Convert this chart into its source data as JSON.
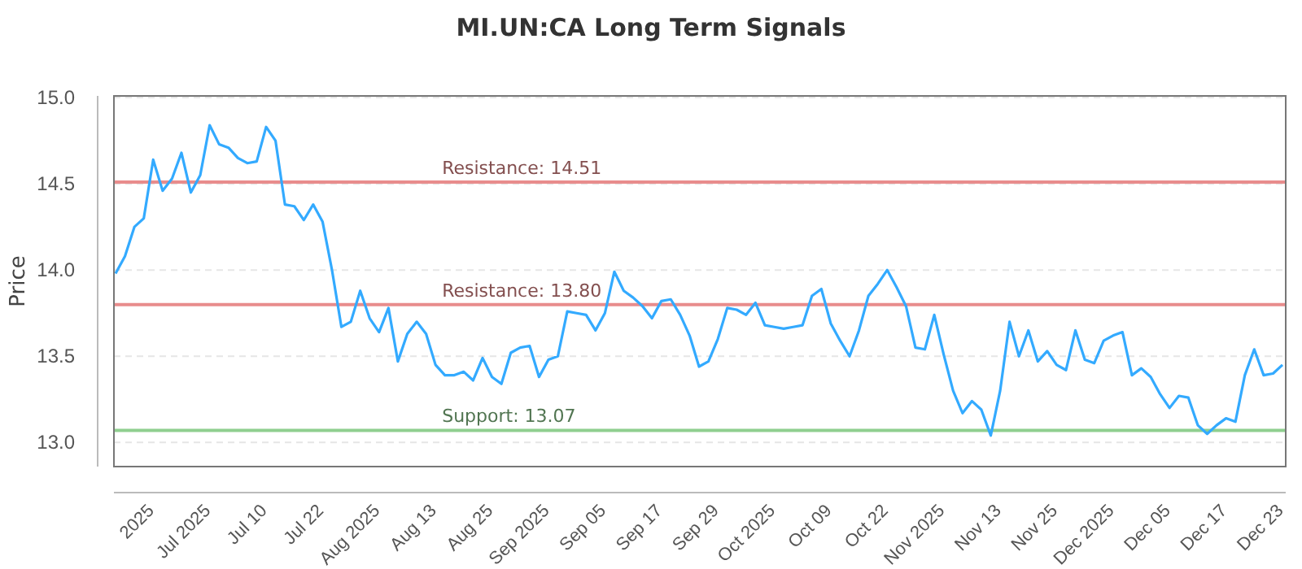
{
  "chart_data": {
    "type": "line",
    "title": "MI.UN:CA Long Term Signals",
    "ylabel": "Price",
    "categories": [
      null,
      null,
      "2025",
      null,
      null,
      null,
      null,
      null,
      "Jul 2025",
      null,
      null,
      null,
      null,
      null,
      "Jul 10",
      null,
      null,
      null,
      null,
      null,
      "Jul 22",
      null,
      null,
      null,
      null,
      null,
      "Aug 2025",
      null,
      null,
      null,
      null,
      null,
      "Aug 13",
      null,
      null,
      null,
      null,
      null,
      "Aug 25",
      null,
      null,
      null,
      null,
      null,
      "Sep 2025",
      null,
      null,
      null,
      null,
      null,
      "Sep 05",
      null,
      null,
      null,
      null,
      null,
      "Sep 17",
      null,
      null,
      null,
      null,
      null,
      "Sep 29",
      null,
      null,
      null,
      null,
      null,
      "Oct 2025",
      null,
      null,
      null,
      null,
      null,
      "Oct 09",
      null,
      null,
      null,
      null,
      null,
      "Oct 22",
      null,
      null,
      null,
      null,
      null,
      "Nov 2025",
      null,
      null,
      null,
      null,
      null,
      "Nov 13",
      null,
      null,
      null,
      null,
      null,
      "Nov 25",
      null,
      null,
      null,
      null,
      null,
      "Dec 2025",
      null,
      null,
      null,
      null,
      null,
      "Dec 05",
      null,
      null,
      null,
      null,
      null,
      "Dec 17",
      null,
      null,
      null,
      null,
      null,
      "Dec 23",
      null,
      null
    ],
    "series": [
      {
        "color": "#33aaff",
        "values": [
          13.98,
          14.08,
          14.25,
          14.3,
          14.64,
          14.46,
          14.53,
          14.68,
          14.45,
          14.55,
          14.84,
          14.73,
          14.71,
          14.65,
          14.62,
          14.63,
          14.83,
          14.75,
          14.38,
          14.37,
          14.29,
          14.38,
          14.28,
          14.0,
          13.67,
          13.7,
          13.88,
          13.72,
          13.64,
          13.78,
          13.47,
          13.63,
          13.7,
          13.63,
          13.45,
          13.39,
          13.39,
          13.41,
          13.36,
          13.49,
          13.38,
          13.34,
          13.52,
          13.55,
          13.56,
          13.38,
          13.48,
          13.5,
          13.76,
          13.75,
          13.74,
          13.65,
          13.75,
          13.99,
          13.88,
          13.84,
          13.79,
          13.72,
          13.82,
          13.83,
          13.74,
          13.62,
          13.44,
          13.47,
          13.6,
          13.78,
          13.77,
          13.74,
          13.81,
          13.68,
          13.67,
          13.66,
          13.67,
          13.68,
          13.85,
          13.89,
          13.69,
          13.59,
          13.5,
          13.65,
          13.85,
          13.92,
          14.0,
          13.9,
          13.79,
          13.55,
          13.54,
          13.74,
          13.51,
          13.3,
          13.17,
          13.24,
          13.19,
          13.04,
          13.3,
          13.7,
          13.5,
          13.65,
          13.47,
          13.53,
          13.45,
          13.42,
          13.65,
          13.48,
          13.46,
          13.59,
          13.62,
          13.64,
          13.39,
          13.43,
          13.38,
          13.28,
          13.2,
          13.27,
          13.26,
          13.1,
          13.05,
          13.1,
          13.14,
          13.12,
          13.39,
          13.54,
          13.39,
          13.4,
          13.45
        ]
      }
    ],
    "ylim": [
      12.86,
      15.01
    ],
    "yticks": [
      {
        "value": 13,
        "label": "13.0"
      },
      {
        "value": 13.5,
        "label": "13.5"
      },
      {
        "value": 14,
        "label": "14.0"
      },
      {
        "value": 14.5,
        "label": "14.5"
      },
      {
        "value": 15,
        "label": "15.0"
      }
    ],
    "grid": "y",
    "legend": false,
    "marker": "none",
    "line_style": "solid",
    "ref_lines": [
      {
        "axis": "y",
        "value": 14.51,
        "label": "Resistance: 14.51",
        "color": "#e88c8c"
      },
      {
        "axis": "y",
        "value": 13.8,
        "label": "Resistance: 13.80",
        "color": "#e88c8c"
      },
      {
        "axis": "y",
        "value": 13.07,
        "label": "Support: 13.07",
        "color": "#8fcf8f"
      }
    ]
  }
}
